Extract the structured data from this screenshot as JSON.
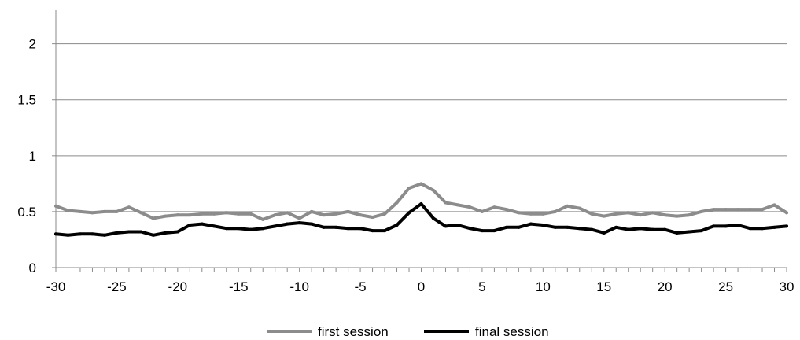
{
  "chart_data": {
    "type": "line",
    "title": "",
    "xlabel": "",
    "ylabel": "",
    "xlim": [
      -30,
      30
    ],
    "ylim": [
      0,
      2.3
    ],
    "x_ticks": [
      -30,
      -25,
      -20,
      -15,
      -10,
      -5,
      0,
      5,
      10,
      15,
      20,
      25,
      30
    ],
    "x_tick_labels": [
      "-30",
      "-25",
      "-20",
      "-15",
      "-10",
      "-5",
      "0",
      "5",
      "10",
      "15",
      "20",
      "25",
      "30"
    ],
    "y_ticks": [
      0,
      0.5,
      1,
      1.5,
      2
    ],
    "y_tick_labels": [
      "0",
      "0.5",
      "1",
      "1.5",
      "2"
    ],
    "grid": "horizontal",
    "legend_position": "bottom",
    "x": [
      -30,
      -29,
      -28,
      -27,
      -26,
      -25,
      -24,
      -23,
      -22,
      -21,
      -20,
      -19,
      -18,
      -17,
      -16,
      -15,
      -14,
      -13,
      -12,
      -11,
      -10,
      -9,
      -8,
      -7,
      -6,
      -5,
      -4,
      -3,
      -2,
      -1,
      0,
      1,
      2,
      3,
      4,
      5,
      6,
      7,
      8,
      9,
      10,
      11,
      12,
      13,
      14,
      15,
      16,
      17,
      18,
      19,
      20,
      21,
      22,
      23,
      24,
      25,
      26,
      27,
      28,
      29,
      30
    ],
    "series": [
      {
        "name": "first session",
        "color": "#8c8c8c",
        "values": [
          0.55,
          0.51,
          0.5,
          0.49,
          0.5,
          0.5,
          0.54,
          0.49,
          0.44,
          0.46,
          0.47,
          0.47,
          0.48,
          0.48,
          0.49,
          0.48,
          0.48,
          0.43,
          0.47,
          0.49,
          0.44,
          0.5,
          0.47,
          0.48,
          0.5,
          0.47,
          0.45,
          0.48,
          0.58,
          0.71,
          0.75,
          0.69,
          0.58,
          0.56,
          0.54,
          0.5,
          0.54,
          0.52,
          0.49,
          0.48,
          0.48,
          0.5,
          0.55,
          0.53,
          0.48,
          0.46,
          0.48,
          0.49,
          0.47,
          0.49,
          0.47,
          0.46,
          0.47,
          0.5,
          0.52,
          0.52,
          0.52,
          0.52,
          0.52,
          0.56,
          0.49
        ]
      },
      {
        "name": "final session",
        "color": "#000000",
        "values": [
          0.3,
          0.29,
          0.3,
          0.3,
          0.29,
          0.31,
          0.32,
          0.32,
          0.29,
          0.31,
          0.32,
          0.38,
          0.39,
          0.37,
          0.35,
          0.35,
          0.34,
          0.35,
          0.37,
          0.39,
          0.4,
          0.39,
          0.36,
          0.36,
          0.35,
          0.35,
          0.33,
          0.33,
          0.38,
          0.49,
          0.57,
          0.44,
          0.37,
          0.38,
          0.35,
          0.33,
          0.33,
          0.36,
          0.36,
          0.39,
          0.38,
          0.36,
          0.36,
          0.35,
          0.34,
          0.31,
          0.36,
          0.34,
          0.35,
          0.34,
          0.34,
          0.31,
          0.32,
          0.33,
          0.37,
          0.37,
          0.38,
          0.35,
          0.35,
          0.36,
          0.37
        ]
      }
    ]
  }
}
